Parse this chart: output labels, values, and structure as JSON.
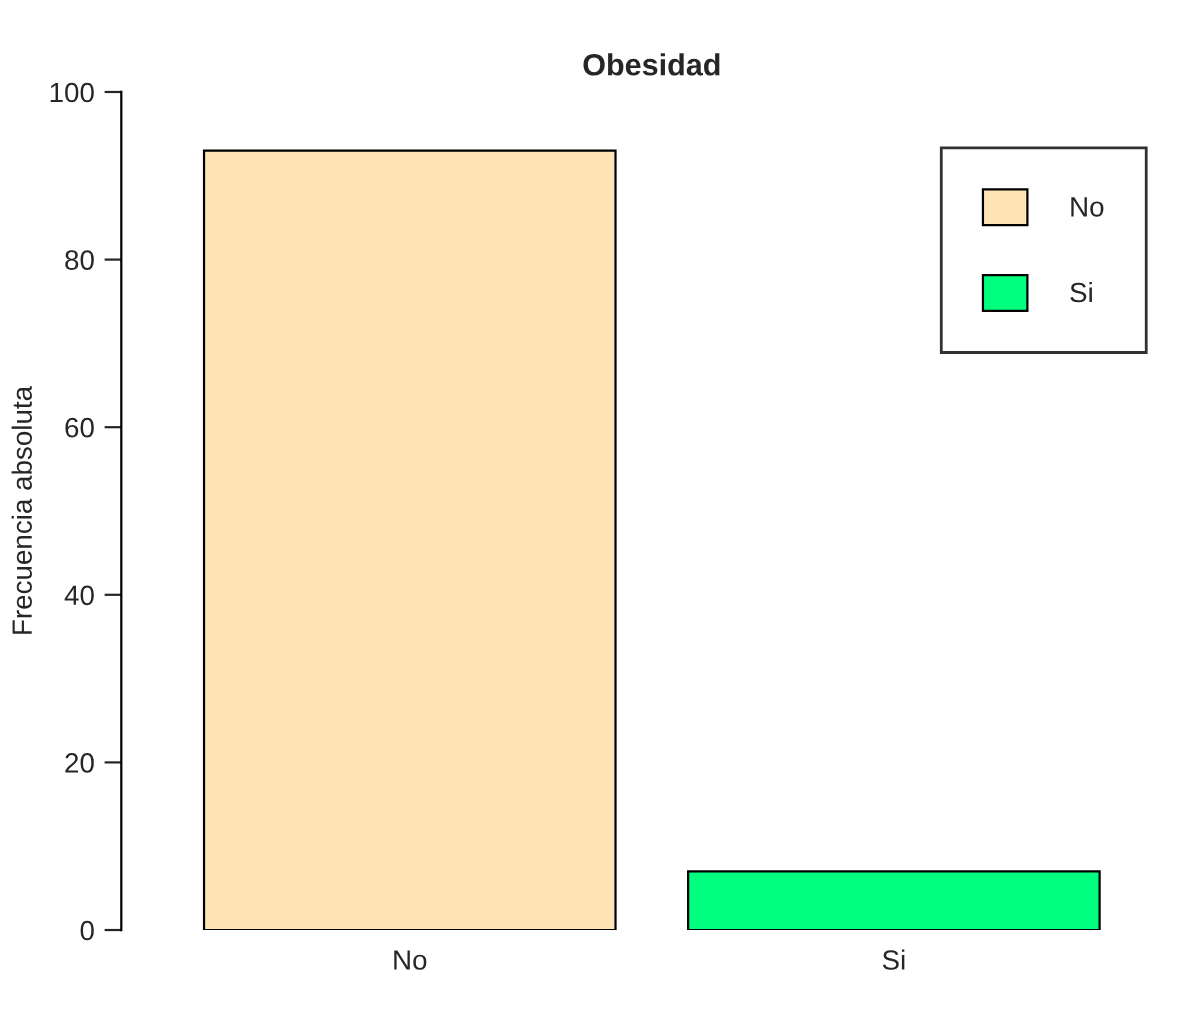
{
  "chart_data": {
    "type": "bar",
    "title": "Obesidad",
    "ylabel": "Frecuencia absoluta",
    "categories": [
      "No",
      "Si"
    ],
    "series": [
      {
        "name": "No",
        "color": "#ffe4b5",
        "values": [
          93,
          null
        ]
      },
      {
        "name": "Si",
        "color": "#00ff7f",
        "values": [
          null,
          7
        ]
      }
    ],
    "ylim": [
      0,
      100
    ],
    "yticks": [
      0,
      20,
      40,
      60,
      80,
      100
    ],
    "grid": false,
    "legend": "top right"
  }
}
